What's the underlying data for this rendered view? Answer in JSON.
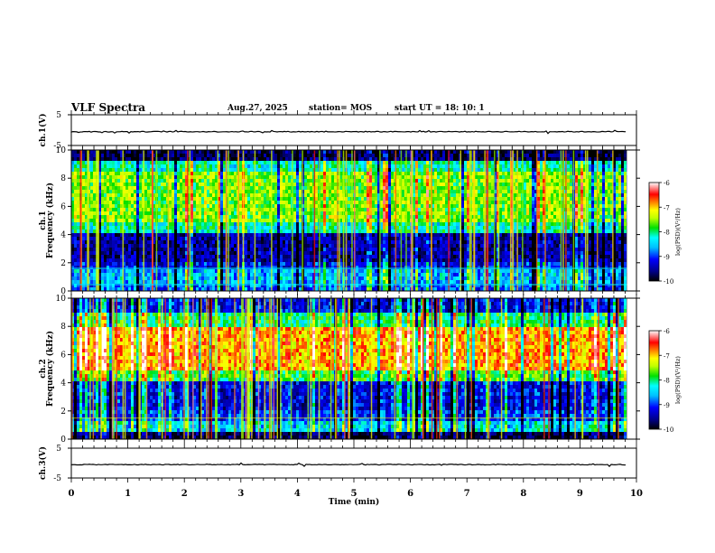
{
  "header": {
    "title": "VLF Spectra",
    "date": "Aug.27, 2025",
    "station": "station= MOS",
    "start": "start  UT =   18: 10: 1"
  },
  "chart_data": [
    {
      "type": "line",
      "name": "ch1-waveform",
      "ylabel": "ch.1(V)",
      "ylim": [
        -5,
        5
      ],
      "yticks": [
        5,
        -5
      ],
      "series": [
        {
          "name": "ch.1",
          "values": [
            -0.5
          ]
        }
      ]
    },
    {
      "type": "heatmap",
      "name": "ch1-spectrogram",
      "ylabel": "ch.1 Frequency (kHz)",
      "ylim": [
        0,
        10
      ],
      "yticks": [
        0,
        2,
        4,
        6,
        8,
        10
      ],
      "colorbar": {
        "label": "log(PSD)(V²/Hz)",
        "ticks": [
          -6,
          -7,
          -8,
          -9,
          -10
        ],
        "range": [
          -10,
          -6
        ]
      },
      "bands": [
        {
          "fmin": 0.0,
          "fmax": 0.4,
          "level": 0.28
        },
        {
          "fmin": 0.4,
          "fmax": 1.6,
          "level": 0.35
        },
        {
          "fmin": 1.6,
          "fmax": 2.0,
          "level": 0.2
        },
        {
          "fmin": 2.0,
          "fmax": 4.0,
          "level": 0.12
        },
        {
          "fmin": 4.0,
          "fmax": 5.0,
          "level": 0.45
        },
        {
          "fmin": 5.0,
          "fmax": 8.5,
          "level": 0.6
        },
        {
          "fmin": 8.5,
          "fmax": 9.2,
          "level": 0.45
        },
        {
          "fmin": 9.2,
          "fmax": 10.0,
          "level": 0.06
        }
      ]
    },
    {
      "type": "heatmap",
      "name": "ch2-spectrogram",
      "ylabel": "ch.2 Frequency (kHz)",
      "ylim": [
        0,
        10
      ],
      "yticks": [
        0,
        2,
        4,
        6,
        8,
        10
      ],
      "colorbar": {
        "label": "log(PSD)(V²/Hz)",
        "ticks": [
          -6,
          -7,
          -8,
          -9,
          -10
        ],
        "range": [
          -10,
          -6
        ]
      },
      "bands": [
        {
          "fmin": 0.0,
          "fmax": 0.4,
          "level": 0.05
        },
        {
          "fmin": 0.4,
          "fmax": 1.4,
          "level": 0.4
        },
        {
          "fmin": 1.4,
          "fmax": 2.0,
          "level": 0.25
        },
        {
          "fmin": 2.0,
          "fmax": 4.0,
          "level": 0.2
        },
        {
          "fmin": 4.0,
          "fmax": 5.0,
          "level": 0.55
        },
        {
          "fmin": 5.0,
          "fmax": 8.0,
          "level": 0.78
        },
        {
          "fmin": 8.0,
          "fmax": 9.0,
          "level": 0.5
        },
        {
          "fmin": 9.0,
          "fmax": 10.0,
          "level": 0.2
        }
      ]
    },
    {
      "type": "line",
      "name": "ch3-waveform",
      "ylabel": "ch.3(V)",
      "ylim": [
        -5,
        5
      ],
      "yticks": [
        5,
        -5
      ],
      "series": [
        {
          "name": "ch.3",
          "values": [
            -0.5
          ]
        }
      ]
    }
  ],
  "xaxis": {
    "label": "Time  (min)",
    "range": [
      0,
      10
    ],
    "ticks": [
      "0",
      "1",
      "2",
      "3",
      "4",
      "5",
      "6",
      "7",
      "8",
      "9",
      "10"
    ],
    "data_end": 9.83
  },
  "colors": {
    "scale": [
      "#000000",
      "#00008b",
      "#0000ff",
      "#00bfff",
      "#00ffff",
      "#00ff80",
      "#00e000",
      "#c0ff00",
      "#ffff00",
      "#ff8000",
      "#ff0000",
      "#ffffff"
    ]
  }
}
